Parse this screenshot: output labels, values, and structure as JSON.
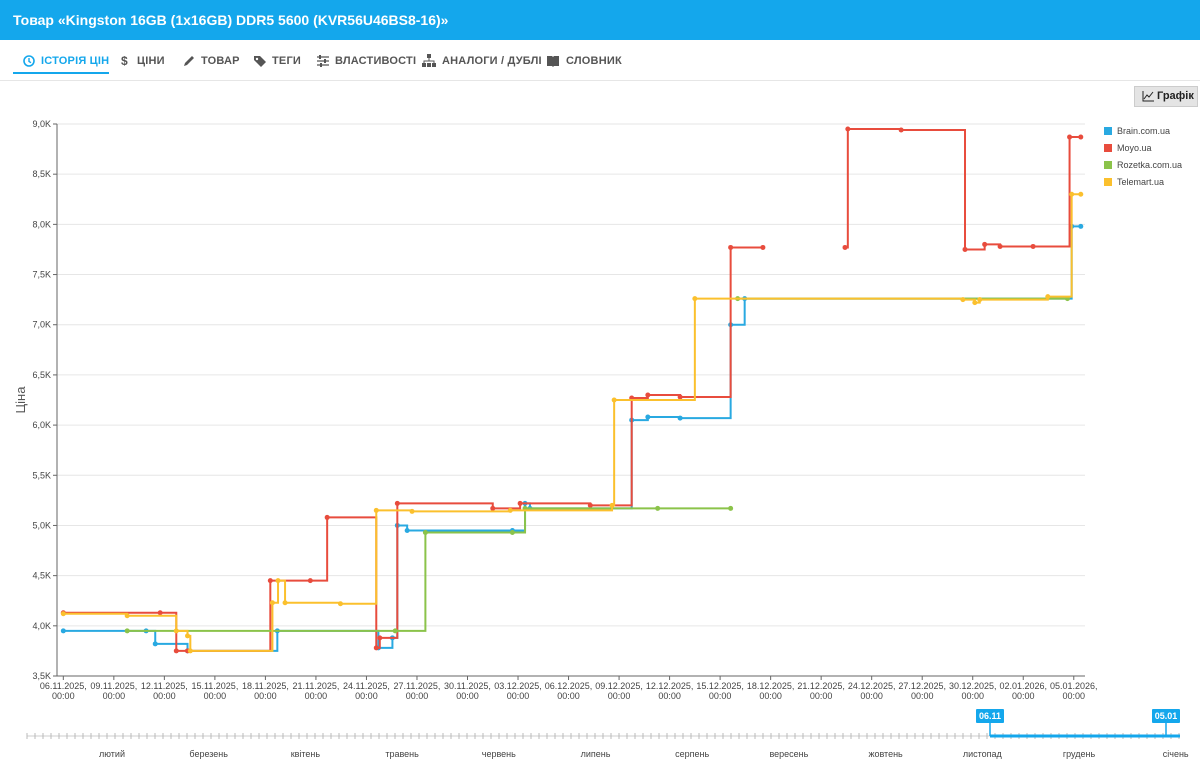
{
  "header": {
    "title": "Товар «Kingston 16GB (1x16GB) DDR5 5600 (KVR56U46BS8-16)»"
  },
  "tabs": [
    "ІСТОРІЯ ЦІН",
    "ЦІНИ",
    "ТОВАР",
    "ТЕГИ",
    "ВЛАСТИВОСТІ",
    "АНАЛОГИ / ДУБЛІ",
    "СЛОВНИК"
  ],
  "chart_button": "Графік",
  "chart_data": {
    "type": "step-line",
    "ylabel": "Ціна",
    "xlim": [
      "2025-11-05T15:00",
      "2026-01-05T16:00"
    ],
    "ylim": [
      3500,
      9000
    ],
    "yticks": [
      {
        "value": 3500,
        "label": "3,5K"
      },
      {
        "value": 4000,
        "label": "4,0K"
      },
      {
        "value": 4500,
        "label": "4,5K"
      },
      {
        "value": 5000,
        "label": "5,0K"
      },
      {
        "value": 5500,
        "label": "5,5K"
      },
      {
        "value": 6000,
        "label": "6,0K"
      },
      {
        "value": 6500,
        "label": "6,5K"
      },
      {
        "value": 7000,
        "label": "7,0K"
      },
      {
        "value": 7500,
        "label": "7,5K"
      },
      {
        "value": 8000,
        "label": "8,0K"
      },
      {
        "value": 8500,
        "label": "8,5K"
      },
      {
        "value": 9000,
        "label": "9,0K"
      }
    ],
    "xticks": [
      {
        "value": "2025-11-06T00:00",
        "label": [
          "06.11.2025,",
          "00:00"
        ]
      },
      {
        "value": "2025-11-09T00:00",
        "label": [
          "09.11.2025,",
          "00:00"
        ]
      },
      {
        "value": "2025-11-12T00:00",
        "label": [
          "12.11.2025,",
          "00:00"
        ]
      },
      {
        "value": "2025-11-15T00:00",
        "label": [
          "15.11.2025,",
          "00:00"
        ]
      },
      {
        "value": "2025-11-18T00:00",
        "label": [
          "18.11.2025,",
          "00:00"
        ]
      },
      {
        "value": "2025-11-21T00:00",
        "label": [
          "21.11.2025,",
          "00:00"
        ]
      },
      {
        "value": "2025-11-24T00:00",
        "label": [
          "24.11.2025,",
          "00:00"
        ]
      },
      {
        "value": "2025-11-27T00:00",
        "label": [
          "27.11.2025,",
          "00:00"
        ]
      },
      {
        "value": "2025-11-30T00:00",
        "label": [
          "30.11.2025,",
          "00:00"
        ]
      },
      {
        "value": "2025-12-03T00:00",
        "label": [
          "03.12.2025,",
          "00:00"
        ]
      },
      {
        "value": "2025-12-06T00:00",
        "label": [
          "06.12.2025,",
          "00:00"
        ]
      },
      {
        "value": "2025-12-09T00:00",
        "label": [
          "09.12.2025,",
          "00:00"
        ]
      },
      {
        "value": "2025-12-12T00:00",
        "label": [
          "12.12.2025,",
          "00:00"
        ]
      },
      {
        "value": "2025-12-15T00:00",
        "label": [
          "15.12.2025,",
          "00:00"
        ]
      },
      {
        "value": "2025-12-18T00:00",
        "label": [
          "18.12.2025,",
          "00:00"
        ]
      },
      {
        "value": "2025-12-21T00:00",
        "label": [
          "21.12.2025,",
          "00:00"
        ]
      },
      {
        "value": "2025-12-24T00:00",
        "label": [
          "24.12.2025,",
          "00:00"
        ]
      },
      {
        "value": "2025-12-27T00:00",
        "label": [
          "27.12.2025,",
          "00:00"
        ]
      },
      {
        "value": "2025-12-30T00:00",
        "label": [
          "30.12.2025,",
          "00:00"
        ]
      },
      {
        "value": "2026-01-02T00:00",
        "label": [
          "02.01.2026,",
          "00:00"
        ]
      },
      {
        "value": "2026-01-05T00:00",
        "label": [
          "05.01.2026,",
          "00:00"
        ]
      }
    ],
    "grid": true,
    "legend": "right",
    "series": [
      {
        "name": "Brain.com.ua",
        "color": "#29a9e1",
        "x": [
          "2025-11-06T00:00",
          "2025-11-10T22:00",
          "2025-11-11T11:00",
          "2025-11-13T09:00",
          "2025-11-18T17:00",
          "2025-11-24T17:00",
          "2025-11-25T13:00",
          "2025-11-25T20:00",
          "2025-11-26T10:00",
          "2025-12-02T16:00",
          "2025-12-03T10:00",
          "2025-12-03T17:00",
          "2025-12-09T18:00",
          "2025-12-10T17:00",
          "2025-12-12T15:00",
          "2025-12-15T15:00",
          "2025-12-16T11:00",
          "2026-01-04T21:00",
          "2026-01-05T10:00"
        ],
        "values": [
          3950,
          3950,
          3820,
          3750,
          3950,
          3780,
          3880,
          5000,
          4950,
          4950,
          5220,
          5170,
          6050,
          6080,
          6070,
          7000,
          7260,
          7980,
          7980
        ]
      },
      {
        "name": "Moyo.ua",
        "color": "#e84c3d",
        "x": [
          "2025-11-06T00:00",
          "2025-11-11T18:00",
          "2025-11-12T17:00",
          "2025-11-13T09:00",
          "2025-11-18T07:00",
          "2025-11-20T16:00",
          "2025-11-21T16:00",
          "2025-11-24T14:00",
          "2025-11-24T19:00",
          "2025-11-25T20:00",
          "2025-12-01T12:00",
          "2025-12-03T03:00",
          "2025-12-07T07:00",
          "2025-12-09T18:00",
          "2025-12-10T17:00",
          "2025-12-12T15:00",
          "2025-12-15T15:00",
          "2025-12-17T13:00",
          "2025-12-18T00:00",
          "2025-12-22T10:00",
          "2025-12-22T14:00",
          "2025-12-25T18:00",
          "2025-12-29T13:00",
          "2025-12-30T17:00",
          "2025-12-31T15:00",
          "2026-01-02T14:00",
          "2026-01-04T18:00",
          "2026-01-05T10:00"
        ],
        "values": [
          4130,
          4130,
          3750,
          3750,
          4450,
          4450,
          5080,
          3780,
          3880,
          5220,
          5170,
          5220,
          5200,
          6270,
          6300,
          6280,
          7770,
          7770,
          null,
          7770,
          8950,
          8940,
          7750,
          7800,
          7780,
          7780,
          8870,
          8870
        ]
      },
      {
        "name": "Rozetka.com.ua",
        "color": "#8bc34a",
        "x": [
          "2025-11-09T19:00",
          "2025-11-25T17:00",
          "2025-11-27T12:00",
          "2025-12-02T16:00",
          "2025-12-03T10:00",
          "2025-12-11T07:00",
          "2025-12-15T15:00",
          "2025-12-15T20:00",
          "2025-12-16T01:00",
          "2026-01-04T15:00"
        ],
        "values": [
          3950,
          3950,
          4930,
          4930,
          5170,
          5170,
          5170,
          null,
          7260,
          7260
        ]
      },
      {
        "name": "Telemart.ua",
        "color": "#fbc02d",
        "x": [
          "2025-11-06T00:00",
          "2025-11-09T19:00",
          "2025-11-12T17:00",
          "2025-11-13T09:00",
          "2025-11-13T13:00",
          "2025-11-18T10:00",
          "2025-11-18T18:00",
          "2025-11-19T04:00",
          "2025-11-22T11:00",
          "2025-11-24T14:00",
          "2025-11-26T17:00",
          "2025-12-02T13:00",
          "2025-12-08T14:00",
          "2025-12-08T17:00",
          "2025-12-13T12:00",
          "2025-12-29T10:00",
          "2025-12-30T03:00",
          "2025-12-30T10:00",
          "2026-01-03T11:00",
          "2026-01-04T21:00",
          "2026-01-05T10:00"
        ],
        "values": [
          4120,
          4100,
          3950,
          3900,
          3750,
          4230,
          4450,
          4230,
          4220,
          5150,
          5140,
          5150,
          5200,
          6250,
          7260,
          7250,
          7220,
          7250,
          7280,
          8300,
          8300
        ]
      }
    ]
  },
  "navigator": {
    "months": [
      "лютий",
      "березень",
      "квітень",
      "травень",
      "червень",
      "липень",
      "серпень",
      "вересень",
      "жовтень",
      "листопад",
      "грудень",
      "січень"
    ],
    "range": [
      "06.11",
      "05.01"
    ]
  }
}
